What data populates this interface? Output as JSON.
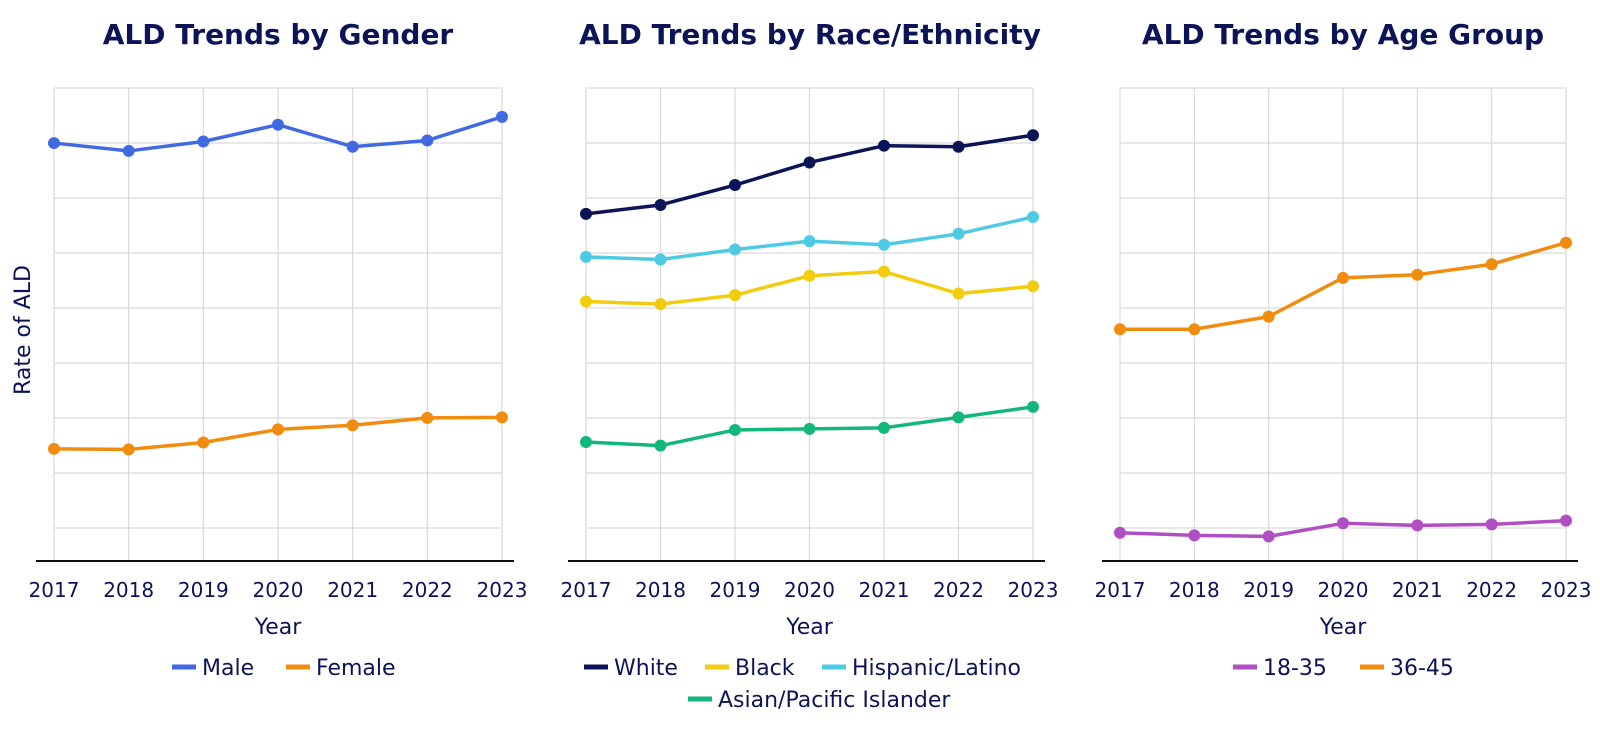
{
  "figure": {
    "shared_ylabel": "Rate of ALD"
  },
  "chart_data": [
    {
      "type": "line",
      "title": "ALD Trends by Gender",
      "xlabel": "Year",
      "ylabel": "Rate of ALD",
      "x": [
        2017,
        2018,
        2019,
        2020,
        2021,
        2022,
        2023
      ],
      "ylim": [
        0,
        9
      ],
      "grid": true,
      "legend": "bottom",
      "series": [
        {
          "name": "Male",
          "color": "#4169e1",
          "values": [
            7.95,
            7.8,
            7.98,
            8.3,
            7.88,
            8.0,
            8.45
          ]
        },
        {
          "name": "Female",
          "color": "#f28c0f",
          "values": [
            2.12,
            2.11,
            2.24,
            2.49,
            2.57,
            2.71,
            2.72
          ]
        }
      ]
    },
    {
      "type": "line",
      "title": "ALD Trends by Race/Ethnicity",
      "xlabel": "Year",
      "ylabel": "",
      "x": [
        2017,
        2018,
        2019,
        2020,
        2021,
        2022,
        2023
      ],
      "ylim": [
        0,
        9
      ],
      "grid": true,
      "legend": "bottom",
      "series": [
        {
          "name": "White",
          "color": "#0c1458",
          "values": [
            6.6,
            6.77,
            7.15,
            7.58,
            7.9,
            7.88,
            8.1
          ]
        },
        {
          "name": "Black",
          "color": "#f2cc0f",
          "values": [
            4.93,
            4.88,
            5.05,
            5.42,
            5.5,
            5.08,
            5.22
          ]
        },
        {
          "name": "Hispanic/Latino",
          "color": "#4ecbe3",
          "values": [
            5.78,
            5.73,
            5.92,
            6.08,
            6.01,
            6.22,
            6.54
          ]
        },
        {
          "name": "Asian/Pacific Islander",
          "color": "#12b87a",
          "values": [
            2.25,
            2.18,
            2.48,
            2.5,
            2.52,
            2.72,
            2.92
          ]
        }
      ]
    },
    {
      "type": "line",
      "title": "ALD Trends by Age Group",
      "xlabel": "Year",
      "ylabel": "",
      "x": [
        2017,
        2018,
        2019,
        2020,
        2021,
        2022,
        2023
      ],
      "ylim": [
        0,
        9
      ],
      "grid": true,
      "legend": "bottom",
      "series": [
        {
          "name": "18-35",
          "color": "#b04ec4",
          "values": [
            0.52,
            0.47,
            0.45,
            0.7,
            0.66,
            0.68,
            0.75
          ]
        },
        {
          "name": "36-45",
          "color": "#f28c0f",
          "values": [
            4.4,
            4.4,
            4.64,
            5.38,
            5.44,
            5.64,
            6.05
          ]
        }
      ]
    }
  ]
}
